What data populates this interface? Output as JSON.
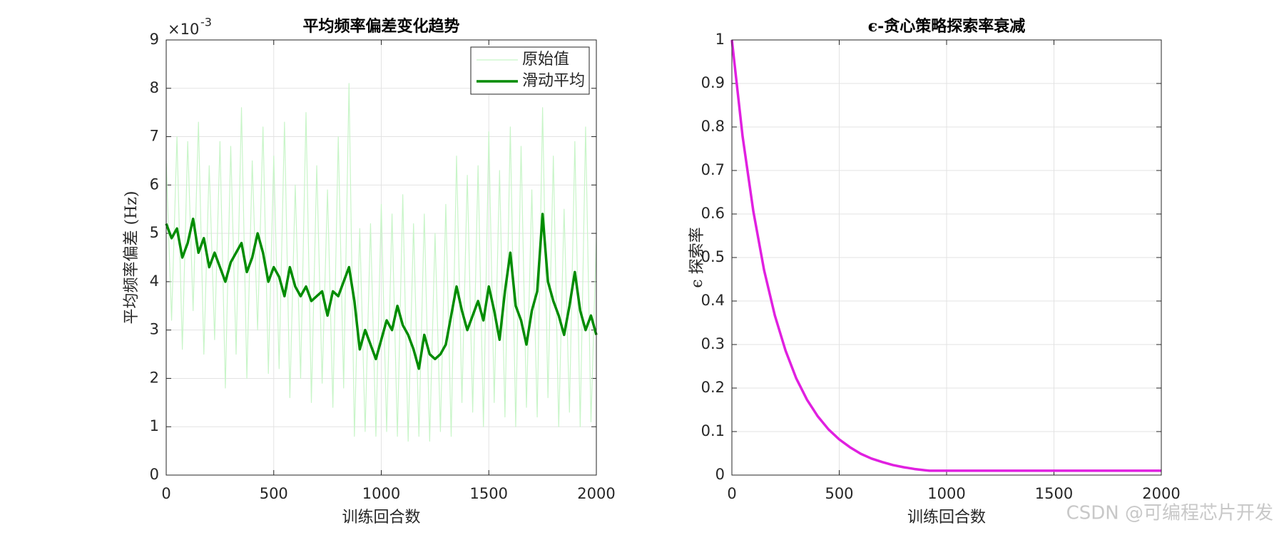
{
  "chart_data": [
    {
      "type": "line",
      "title": "平均频率偏差变化趋势",
      "xlabel": "训练回合数",
      "ylabel": "平均频率偏差 (Hz)",
      "y_exponent": {
        "base": "×10",
        "power": "-3"
      },
      "x": [
        0,
        25,
        50,
        75,
        100,
        125,
        150,
        175,
        200,
        225,
        250,
        275,
        300,
        325,
        350,
        375,
        400,
        425,
        450,
        475,
        500,
        525,
        550,
        575,
        600,
        625,
        650,
        675,
        700,
        725,
        750,
        775,
        800,
        825,
        850,
        875,
        900,
        925,
        950,
        975,
        1000,
        1025,
        1050,
        1075,
        1100,
        1125,
        1150,
        1175,
        1200,
        1225,
        1250,
        1275,
        1300,
        1325,
        1350,
        1375,
        1400,
        1425,
        1450,
        1475,
        1500,
        1525,
        1550,
        1575,
        1600,
        1625,
        1650,
        1675,
        1700,
        1725,
        1750,
        1775,
        1800,
        1825,
        1850,
        1875,
        1900,
        1925,
        1950,
        1975,
        2000
      ],
      "series": [
        {
          "name": "原始值",
          "color": "#c8f5c8",
          "width": 1.2,
          "values": [
            6.5,
            3.2,
            7.0,
            2.6,
            6.9,
            3.4,
            7.3,
            2.5,
            6.4,
            2.8,
            6.9,
            1.8,
            6.8,
            2.5,
            7.6,
            2.0,
            6.5,
            3.0,
            7.2,
            2.1,
            6.6,
            2.2,
            7.3,
            1.6,
            6.0,
            2.0,
            7.5,
            1.5,
            6.4,
            1.9,
            5.9,
            1.4,
            7.0,
            1.8,
            8.1,
            0.8,
            5.1,
            0.9,
            5.2,
            0.8,
            5.6,
            0.9,
            5.4,
            0.8,
            5.8,
            0.7,
            5.2,
            0.8,
            5.4,
            0.7,
            5.0,
            0.9,
            5.6,
            0.8,
            6.6,
            1.5,
            6.2,
            1.3,
            6.4,
            1.0,
            7.1,
            1.5,
            6.3,
            1.2,
            7.2,
            1.0,
            6.8,
            1.4,
            5.9,
            1.2,
            7.6,
            1.6,
            6.6,
            1.0,
            5.5,
            1.3,
            6.9,
            1.0,
            7.2,
            1.1,
            4.9
          ]
        },
        {
          "name": "滑动平均",
          "color": "#008c00",
          "width": 3.5,
          "values": [
            5.2,
            4.9,
            5.1,
            4.5,
            4.8,
            5.3,
            4.6,
            4.9,
            4.3,
            4.6,
            4.3,
            4.0,
            4.4,
            4.6,
            4.8,
            4.2,
            4.5,
            5.0,
            4.6,
            4.0,
            4.3,
            4.1,
            3.7,
            4.3,
            3.9,
            3.7,
            3.9,
            3.6,
            3.7,
            3.8,
            3.3,
            3.8,
            3.7,
            4.0,
            4.3,
            3.6,
            2.6,
            3.0,
            2.7,
            2.4,
            2.8,
            3.2,
            3.0,
            3.5,
            3.1,
            2.9,
            2.6,
            2.2,
            2.9,
            2.5,
            2.4,
            2.5,
            2.7,
            3.3,
            3.9,
            3.4,
            3.0,
            3.3,
            3.6,
            3.2,
            3.9,
            3.4,
            2.8,
            3.8,
            4.6,
            3.5,
            3.2,
            2.7,
            3.4,
            3.8,
            5.4,
            4.0,
            3.6,
            3.3,
            2.9,
            3.5,
            4.2,
            3.4,
            3.0,
            3.3,
            2.9
          ]
        }
      ],
      "xlim": [
        0,
        2000
      ],
      "xticks": [
        0,
        500,
        1000,
        1500,
        2000
      ],
      "ylim": [
        0,
        9
      ],
      "yticks": [
        0,
        1,
        2,
        3,
        4,
        5,
        6,
        7,
        8,
        9
      ],
      "grid": true,
      "legend": "northeast"
    },
    {
      "type": "line",
      "title": "ϵ-贪心策略探索率衰减",
      "xlabel": "训练回合数",
      "ylabel": "ϵ 探索率",
      "x": [
        0,
        50,
        100,
        150,
        200,
        250,
        300,
        350,
        400,
        450,
        500,
        550,
        600,
        650,
        700,
        750,
        800,
        850,
        900,
        920,
        1000,
        1100,
        1200,
        1300,
        1400,
        1500,
        1600,
        1700,
        1800,
        1900,
        2000
      ],
      "series": [
        {
          "name": "ϵ",
          "color": "#e020e0",
          "width": 3.5,
          "values": [
            1,
            0.778,
            0.606,
            0.471,
            0.367,
            0.286,
            0.222,
            0.173,
            0.135,
            0.105,
            0.082,
            0.064,
            0.049,
            0.038,
            0.03,
            0.023,
            0.018,
            0.014,
            0.011,
            0.01,
            0.01,
            0.01,
            0.01,
            0.01,
            0.01,
            0.01,
            0.01,
            0.01,
            0.01,
            0.01,
            0.01
          ]
        }
      ],
      "xlim": [
        0,
        2000
      ],
      "xticks": [
        0,
        500,
        1000,
        1500,
        2000
      ],
      "ylim": [
        0,
        1
      ],
      "yticks": [
        0,
        0.1,
        0.2,
        0.3,
        0.4,
        0.5,
        0.6,
        0.7,
        0.8,
        0.9,
        1
      ],
      "grid": true
    }
  ],
  "watermark": "CSDN @可编程芯片开发"
}
